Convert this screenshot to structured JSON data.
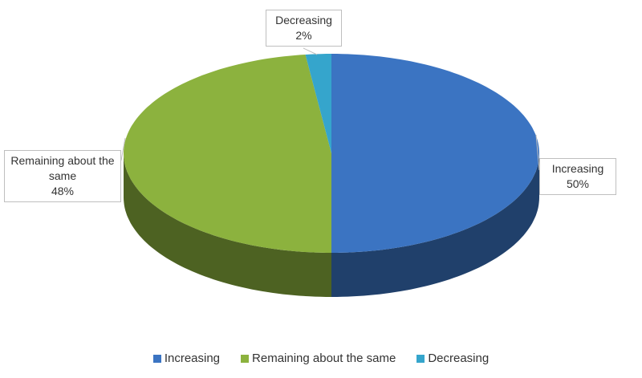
{
  "chart_data": {
    "type": "pie3d",
    "categories": [
      "Increasing",
      "Remaining about the same",
      "Decreasing"
    ],
    "values": [
      50,
      48,
      2
    ],
    "value_labels": [
      "50%",
      "48%",
      "2%"
    ],
    "colors": [
      "#3b74c2",
      "#8cb23e",
      "#35a5cc"
    ],
    "legend": "bottom"
  }
}
